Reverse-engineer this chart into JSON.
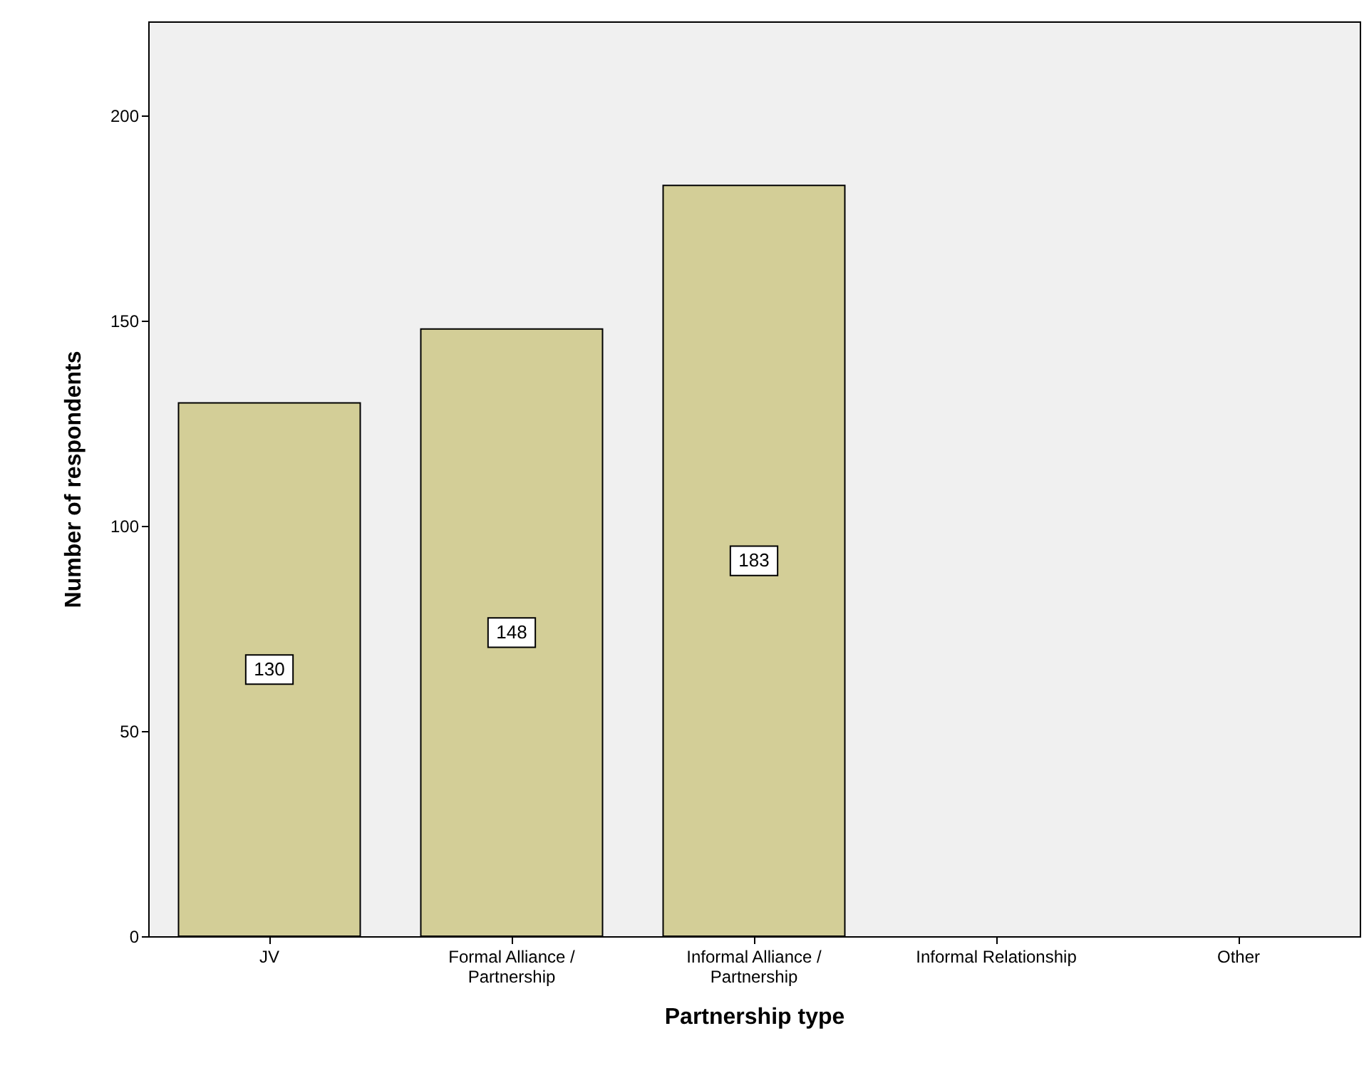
{
  "chart_data": {
    "type": "bar",
    "xlabel": "Partnership type",
    "ylabel": "Number of respondents",
    "categories": [
      "JV",
      "Formal Alliance /\nPartnership",
      "Informal Alliance /\nPartnership",
      "Informal Relationship",
      "Other"
    ],
    "values": [
      130,
      148,
      183,
      null,
      null
    ],
    "color": "#d3ce97",
    "ylim": [
      0,
      223
    ],
    "yticks": [
      0,
      50,
      100,
      150,
      200
    ],
    "grid": false,
    "data_labels": true
  }
}
